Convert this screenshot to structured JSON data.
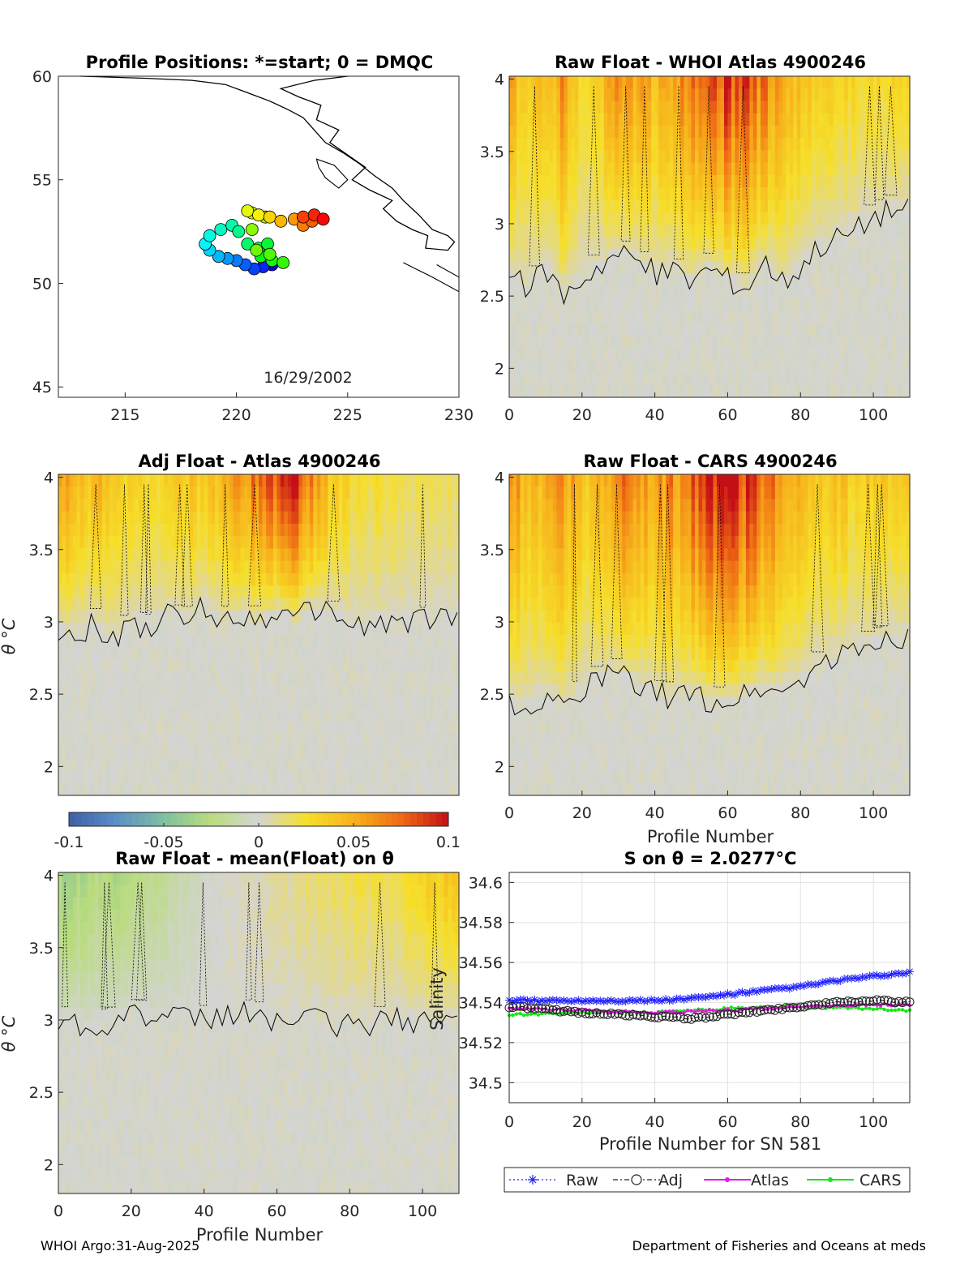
{
  "colors": {
    "colormap": [
      "#3f5fa8",
      "#5b8fc7",
      "#7fc0a0",
      "#b9dc7c",
      "#d4d4d4",
      "#f6df2a",
      "#f7b21c",
      "#ef6a14",
      "#c40f17"
    ],
    "panel_bg": "#d8d8d8",
    "raw": "#1f1fff",
    "adj": "#222222",
    "atlas": "#e619e6",
    "cars": "#19e619"
  },
  "chart_data": [
    {
      "id": "positions",
      "type": "scatter",
      "title": "Profile Positions: *=start; 0 = DMQC",
      "xlim": [
        212,
        230
      ],
      "ylim": [
        44.5,
        60
      ],
      "xticks": [
        "215",
        "220",
        "225",
        "230"
      ],
      "yticks": [
        "45",
        "50",
        "55",
        "60"
      ],
      "annotation": "16/29/2002",
      "track": [
        [
          221.6,
          50.9
        ],
        [
          221.2,
          50.8
        ],
        [
          220.8,
          50.7
        ],
        [
          220.4,
          50.9
        ],
        [
          220.0,
          51.1
        ],
        [
          219.6,
          51.2
        ],
        [
          219.2,
          51.3
        ],
        [
          218.8,
          51.6
        ],
        [
          218.6,
          51.9
        ],
        [
          218.8,
          52.3
        ],
        [
          219.3,
          52.6
        ],
        [
          219.8,
          52.8
        ],
        [
          220.1,
          52.5
        ],
        [
          220.5,
          51.9
        ],
        [
          221.0,
          51.7
        ],
        [
          221.4,
          51.9
        ],
        [
          221.1,
          51.3
        ],
        [
          221.6,
          51.1
        ],
        [
          222.1,
          51.0
        ],
        [
          221.5,
          51.4
        ],
        [
          220.9,
          51.6
        ],
        [
          220.7,
          52.6
        ],
        [
          221.3,
          53.2
        ],
        [
          220.7,
          53.4
        ],
        [
          220.5,
          53.5
        ],
        [
          221.0,
          53.3
        ],
        [
          221.5,
          53.2
        ],
        [
          222.0,
          53.0
        ],
        [
          222.6,
          53.1
        ],
        [
          223.0,
          52.8
        ],
        [
          223.4,
          53.0
        ],
        [
          223.0,
          53.2
        ],
        [
          223.5,
          53.3
        ],
        [
          223.9,
          53.1
        ]
      ]
    },
    {
      "id": "raw-whoi",
      "type": "heatmap",
      "title": "Raw Float - WHOI Atlas  4900246",
      "xlim": [
        0,
        110
      ],
      "ylim": [
        1.8,
        4.02
      ],
      "xticks": [
        "0",
        "20",
        "40",
        "60",
        "80",
        "100"
      ],
      "yticks": [
        "2",
        "2.5",
        "3",
        "3.5",
        "4"
      ],
      "boundary": [
        [
          0,
          2.65
        ],
        [
          5,
          2.55
        ],
        [
          10,
          2.7
        ],
        [
          15,
          2.5
        ],
        [
          20,
          2.62
        ],
        [
          25,
          2.72
        ],
        [
          30,
          2.8
        ],
        [
          35,
          2.75
        ],
        [
          40,
          2.65
        ],
        [
          45,
          2.68
        ],
        [
          50,
          2.6
        ],
        [
          55,
          2.7
        ],
        [
          60,
          2.62
        ],
        [
          65,
          2.55
        ],
        [
          70,
          2.75
        ],
        [
          75,
          2.6
        ],
        [
          80,
          2.7
        ],
        [
          85,
          2.85
        ],
        [
          90,
          2.9
        ],
        [
          95,
          2.95
        ],
        [
          100,
          3.05
        ],
        [
          105,
          3.1
        ],
        [
          110,
          3.1
        ]
      ],
      "peak": [
        [
          0,
          0.06
        ],
        [
          5,
          0.03
        ],
        [
          10,
          0.045
        ],
        [
          15,
          0.06
        ],
        [
          20,
          0.03
        ],
        [
          25,
          0.04
        ],
        [
          30,
          0.06
        ],
        [
          35,
          0.055
        ],
        [
          40,
          0.05
        ],
        [
          45,
          0.06
        ],
        [
          50,
          0.07
        ],
        [
          55,
          0.085
        ],
        [
          60,
          0.09
        ],
        [
          65,
          0.08
        ],
        [
          70,
          0.07
        ],
        [
          75,
          0.055
        ],
        [
          80,
          0.04
        ],
        [
          85,
          0.035
        ],
        [
          90,
          0.035
        ],
        [
          95,
          0.03
        ],
        [
          100,
          0.03
        ],
        [
          105,
          0.03
        ],
        [
          110,
          0.03
        ]
      ]
    },
    {
      "id": "adj-atlas",
      "type": "heatmap",
      "title": "Adj Float - Atlas  4900246",
      "ylabel": "θ °C",
      "xlim": [
        0,
        110
      ],
      "ylim": [
        1.8,
        4.02
      ],
      "xticks": [],
      "yticks": [
        "2",
        "2.5",
        "3",
        "3.5",
        "4"
      ],
      "boundary": [
        [
          0,
          2.95
        ],
        [
          5,
          2.9
        ],
        [
          10,
          3.0
        ],
        [
          15,
          2.85
        ],
        [
          20,
          3.0
        ],
        [
          25,
          2.95
        ],
        [
          30,
          3.05
        ],
        [
          35,
          3.0
        ],
        [
          40,
          3.1
        ],
        [
          45,
          3.0
        ],
        [
          50,
          3.05
        ],
        [
          55,
          3.0
        ],
        [
          60,
          3.08
        ],
        [
          65,
          3.0
        ],
        [
          70,
          3.1
        ],
        [
          75,
          3.05
        ],
        [
          80,
          3.0
        ],
        [
          85,
          2.95
        ],
        [
          90,
          3.0
        ],
        [
          95,
          3.0
        ],
        [
          100,
          3.0
        ],
        [
          105,
          3.05
        ],
        [
          110,
          3.0
        ]
      ],
      "peak": [
        [
          0,
          0.06
        ],
        [
          5,
          0.04
        ],
        [
          10,
          0.05
        ],
        [
          15,
          0.04
        ],
        [
          20,
          0.03
        ],
        [
          25,
          0.03
        ],
        [
          30,
          0.035
        ],
        [
          35,
          0.04
        ],
        [
          40,
          0.04
        ],
        [
          45,
          0.045
        ],
        [
          50,
          0.06
        ],
        [
          55,
          0.075
        ],
        [
          60,
          0.08
        ],
        [
          65,
          0.09
        ],
        [
          70,
          0.06
        ],
        [
          75,
          0.04
        ],
        [
          80,
          0.03
        ],
        [
          85,
          0.025
        ],
        [
          90,
          0.025
        ],
        [
          95,
          0.02
        ],
        [
          100,
          0.02
        ],
        [
          105,
          0.02
        ],
        [
          110,
          0.02
        ]
      ]
    },
    {
      "id": "raw-cars",
      "type": "heatmap",
      "title": "Raw Float - CARS  4900246",
      "xlabel": "Profile Number",
      "xlim": [
        0,
        110
      ],
      "ylim": [
        1.8,
        4.02
      ],
      "xticks": [
        "0",
        "20",
        "40",
        "60",
        "80",
        "100"
      ],
      "yticks": [
        "2",
        "2.5",
        "3",
        "3.5",
        "4"
      ],
      "boundary": [
        [
          0,
          2.45
        ],
        [
          5,
          2.4
        ],
        [
          10,
          2.5
        ],
        [
          15,
          2.4
        ],
        [
          20,
          2.55
        ],
        [
          25,
          2.6
        ],
        [
          30,
          2.65
        ],
        [
          35,
          2.55
        ],
        [
          40,
          2.5
        ],
        [
          45,
          2.48
        ],
        [
          50,
          2.5
        ],
        [
          55,
          2.45
        ],
        [
          60,
          2.45
        ],
        [
          65,
          2.5
        ],
        [
          70,
          2.55
        ],
        [
          75,
          2.5
        ],
        [
          80,
          2.6
        ],
        [
          85,
          2.7
        ],
        [
          90,
          2.75
        ],
        [
          95,
          2.8
        ],
        [
          100,
          2.85
        ],
        [
          105,
          2.9
        ],
        [
          110,
          2.9
        ]
      ],
      "peak": [
        [
          0,
          0.07
        ],
        [
          5,
          0.04
        ],
        [
          10,
          0.05
        ],
        [
          15,
          0.065
        ],
        [
          20,
          0.04
        ],
        [
          25,
          0.05
        ],
        [
          30,
          0.07
        ],
        [
          35,
          0.065
        ],
        [
          40,
          0.055
        ],
        [
          45,
          0.065
        ],
        [
          50,
          0.075
        ],
        [
          55,
          0.09
        ],
        [
          60,
          0.1
        ],
        [
          65,
          0.09
        ],
        [
          70,
          0.075
        ],
        [
          75,
          0.06
        ],
        [
          80,
          0.045
        ],
        [
          85,
          0.04
        ],
        [
          90,
          0.04
        ],
        [
          95,
          0.035
        ],
        [
          100,
          0.035
        ],
        [
          105,
          0.035
        ],
        [
          110,
          0.035
        ]
      ]
    },
    {
      "id": "colorbar",
      "type": "heatmap",
      "clim": [
        -0.1,
        0.1
      ],
      "ticks": [
        "-0.1",
        "-0.05",
        "0",
        "0.05",
        "0.1"
      ]
    },
    {
      "id": "raw-mean",
      "type": "heatmap",
      "title": "Raw Float - mean(Float) on θ",
      "ylabel": "θ °C",
      "xlabel": "Profile Number",
      "xlim": [
        0,
        110
      ],
      "ylim": [
        1.8,
        4.02
      ],
      "xticks": [
        "0",
        "20",
        "40",
        "60",
        "80",
        "100"
      ],
      "yticks": [
        "2",
        "2.5",
        "3",
        "3.5",
        "4"
      ],
      "boundary": [
        [
          0,
          3.0
        ],
        [
          10,
          2.95
        ],
        [
          20,
          3.05
        ],
        [
          30,
          3.0
        ],
        [
          40,
          3.0
        ],
        [
          50,
          3.05
        ],
        [
          60,
          3.0
        ],
        [
          70,
          3.0
        ],
        [
          80,
          2.95
        ],
        [
          90,
          3.0
        ],
        [
          100,
          3.0
        ],
        [
          110,
          3.0
        ]
      ],
      "peak": [
        [
          0,
          -0.035
        ],
        [
          5,
          -0.03
        ],
        [
          10,
          -0.025
        ],
        [
          15,
          -0.03
        ],
        [
          20,
          -0.025
        ],
        [
          25,
          -0.02
        ],
        [
          30,
          -0.015
        ],
        [
          35,
          -0.01
        ],
        [
          40,
          -0.005
        ],
        [
          45,
          0.0
        ],
        [
          50,
          0.005
        ],
        [
          55,
          0.005
        ],
        [
          60,
          0.01
        ],
        [
          65,
          0.01
        ],
        [
          70,
          0.015
        ],
        [
          75,
          0.015
        ],
        [
          80,
          0.02
        ],
        [
          85,
          0.02
        ],
        [
          90,
          0.02
        ],
        [
          95,
          0.025
        ],
        [
          100,
          0.03
        ],
        [
          105,
          0.035
        ],
        [
          110,
          0.035
        ]
      ]
    },
    {
      "id": "salinity",
      "type": "line",
      "title": "S on θ = 2.0277°C",
      "xlabel": "Profile Number for SN 581",
      "ylabel": "Salinity",
      "xlim": [
        0,
        110
      ],
      "ylim": [
        34.49,
        34.605
      ],
      "xticks": [
        "0",
        "20",
        "40",
        "60",
        "80",
        "100"
      ],
      "yticks": [
        "34.5",
        "34.52",
        "34.54",
        "34.56",
        "34.58",
        "34.6"
      ],
      "x_range": [
        0,
        110
      ],
      "series": [
        {
          "name": "Raw",
          "style": "dotted-star",
          "anchors": [
            [
              0,
              34.541
            ],
            [
              20,
              34.541
            ],
            [
              40,
              34.541
            ],
            [
              50,
              34.542
            ],
            [
              60,
              34.544
            ],
            [
              70,
              34.546
            ],
            [
              80,
              34.548
            ],
            [
              90,
              34.551
            ],
            [
              100,
              34.553
            ],
            [
              110,
              34.555
            ]
          ]
        },
        {
          "name": "Adj",
          "style": "dashdot-circle",
          "anchors": [
            [
              0,
              34.538
            ],
            [
              20,
              34.535
            ],
            [
              40,
              34.533
            ],
            [
              50,
              34.532
            ],
            [
              60,
              34.534
            ],
            [
              70,
              34.536
            ],
            [
              80,
              34.538
            ],
            [
              90,
              34.54
            ],
            [
              100,
              34.541
            ],
            [
              110,
              34.54
            ]
          ]
        },
        {
          "name": "Atlas",
          "style": "solid-dot",
          "anchors": [
            [
              0,
              34.537
            ],
            [
              20,
              34.536
            ],
            [
              40,
              34.535
            ],
            [
              60,
              34.536
            ],
            [
              80,
              34.538
            ],
            [
              100,
              34.539
            ],
            [
              110,
              34.539
            ]
          ]
        },
        {
          "name": "CARS",
          "style": "solid-dot",
          "anchors": [
            [
              0,
              34.534
            ],
            [
              20,
              34.535
            ],
            [
              40,
              34.535
            ],
            [
              60,
              34.537
            ],
            [
              80,
              34.538
            ],
            [
              100,
              34.537
            ],
            [
              110,
              34.536
            ]
          ]
        }
      ]
    }
  ],
  "footer": {
    "left": "WHOI Argo:31-Aug-2025",
    "right": "Department of Fisheries and Oceans at meds"
  }
}
